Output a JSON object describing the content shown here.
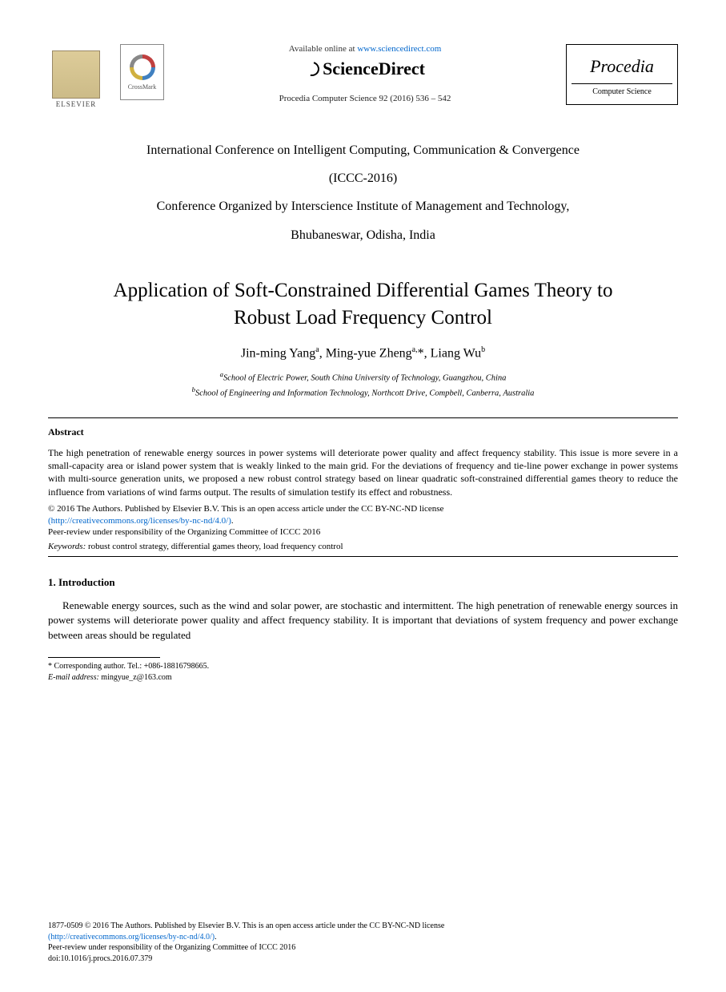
{
  "header": {
    "elsevier_label": "ELSEVIER",
    "crossmark_label": "CrossMark",
    "available_prefix": "Available online at ",
    "available_url": "www.sciencedirect.com",
    "sciencedirect": "ScienceDirect",
    "citation": "Procedia Computer Science 92 (2016) 536 – 542",
    "procedia_title": "Procedia",
    "procedia_sub": "Computer Science"
  },
  "conference": {
    "line1": "International Conference on Intelligent Computing, Communication & Convergence",
    "line2": "(ICCC-2016)",
    "line3": "Conference Organized by Interscience Institute of Management and Technology,",
    "line4": "Bhubaneswar, Odisha, India"
  },
  "title": {
    "line1": "Application of Soft-Constrained Differential Games Theory to",
    "line2": "Robust Load Frequency Control"
  },
  "authors_html": "Jin-ming Yang<sup>a</sup>, Ming-yue Zheng<sup>a,</sup>*, Liang Wu<sup>b</sup>",
  "affiliations": {
    "a": "aSchool of Electric Power, South China University of Technology, Guangzhou, China",
    "b": "bSchool of Engineering and Information Technology, Northcott Drive, Compbell, Canberra, Australia"
  },
  "abstract": {
    "heading": "Abstract",
    "body": "The high penetration of renewable energy sources in power systems will deteriorate power quality and affect frequency stability. This issue is more severe in a small-capacity area or island power system that is weakly linked to the main grid. For the deviations of frequency and tie-line power exchange in power systems with multi-source generation units, we proposed a new robust control strategy based on linear quadratic soft-constrained differential games theory to reduce the influence from variations of wind farms output. The results of simulation testify its effect and robustness."
  },
  "copyright": {
    "line1": "© 2016 The Authors. Published by Elsevier B.V. This is an open access article under the CC BY-NC-ND license",
    "license_url_text": "(http://creativecommons.org/licenses/by-nc-nd/4.0/)",
    "peer": "Peer-review under responsibility of the Organizing Committee of ICCC 2016"
  },
  "keywords": {
    "label": "Keywords:",
    "text": " robust control strategy, differential games theory, load frequency control"
  },
  "section1": {
    "heading": "1. Introduction",
    "para": "Renewable energy sources, such as the wind and solar power, are stochastic and intermittent. The high penetration of renewable energy sources in power systems will deteriorate power quality and affect frequency stability. It is important that deviations of system frequency and power exchange between areas should be regulated"
  },
  "footnote": {
    "corr": "* Corresponding author. Tel.: +086-18816798665.",
    "email_label": "E-mail address:",
    "email": " mingyue_z@163.com"
  },
  "footer": {
    "issn_line": "1877-0509 © 2016 The Authors. Published by Elsevier B.V. This is an open access article under the CC BY-NC-ND license",
    "license_url_text": "(http://creativecommons.org/licenses/by-nc-nd/4.0/)",
    "peer": "Peer-review under responsibility of the Organizing Committee of ICCC 2016",
    "doi": "doi:10.1016/j.procs.2016.07.379"
  },
  "colors": {
    "link": "#0066cc",
    "text": "#000000",
    "background": "#ffffff"
  }
}
